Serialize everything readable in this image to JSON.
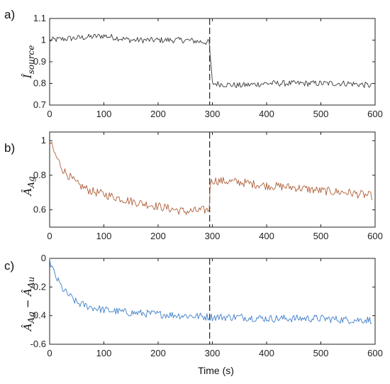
{
  "chart_data": [
    {
      "type": "line",
      "panel_label": "a)",
      "ylabel": "Î_source",
      "xlabel": "",
      "xlim": [
        0,
        600
      ],
      "ylim": [
        0.7,
        1.1
      ],
      "xticks": [
        "0",
        "100",
        "200",
        "300",
        "400",
        "500",
        "600"
      ],
      "yticks": [
        "0.7",
        "0.8",
        "0.9",
        "1",
        "1.1"
      ],
      "switch_time": 295,
      "grid": false,
      "series": [
        {
          "color": "#3a3a3a",
          "x": [
            0,
            50,
            100,
            150,
            200,
            250,
            290,
            294,
            300,
            350,
            400,
            450,
            500,
            550,
            594
          ],
          "y": [
            1.0,
            1.01,
            1.02,
            1.0,
            1.0,
            1.0,
            0.99,
            0.99,
            0.8,
            0.79,
            0.8,
            0.8,
            0.8,
            0.8,
            0.79
          ]
        }
      ]
    },
    {
      "type": "line",
      "panel_label": "b)",
      "ylabel": "Â_Ag",
      "xlabel": "",
      "xlim": [
        0,
        600
      ],
      "ylim": [
        0.5,
        1.05
      ],
      "xticks": [
        "0",
        "100",
        "200",
        "300",
        "400",
        "500",
        "600"
      ],
      "yticks": [
        "0.6",
        "0.8",
        "1"
      ],
      "switch_time": 295,
      "grid": false,
      "series": [
        {
          "color": "#b0603a",
          "x": [
            0,
            10,
            25,
            50,
            75,
            100,
            150,
            200,
            250,
            294,
            296,
            300,
            350,
            400,
            450,
            500,
            550,
            594
          ],
          "y": [
            1.0,
            0.92,
            0.83,
            0.75,
            0.71,
            0.69,
            0.65,
            0.62,
            0.59,
            0.6,
            0.75,
            0.77,
            0.76,
            0.74,
            0.73,
            0.71,
            0.7,
            0.68
          ]
        }
      ]
    },
    {
      "type": "line",
      "panel_label": "c)",
      "ylabel": "Â_Ag − Â_Au",
      "xlabel": "Time (s)",
      "xlim": [
        0,
        600
      ],
      "ylim": [
        -0.6,
        0
      ],
      "xticks": [
        "0",
        "100",
        "200",
        "300",
        "400",
        "500",
        "600"
      ],
      "yticks": [
        "0",
        "-0.2",
        "-0.4",
        "-0.6"
      ],
      "switch_time": 295,
      "grid": false,
      "series": [
        {
          "color": "#3f7fc8",
          "x": [
            0,
            10,
            25,
            50,
            75,
            100,
            150,
            200,
            250,
            300,
            350,
            400,
            450,
            500,
            550,
            594
          ],
          "y": [
            -0.02,
            -0.12,
            -0.22,
            -0.31,
            -0.34,
            -0.36,
            -0.38,
            -0.39,
            -0.4,
            -0.41,
            -0.41,
            -0.42,
            -0.42,
            -0.42,
            -0.43,
            -0.43
          ]
        }
      ]
    }
  ]
}
